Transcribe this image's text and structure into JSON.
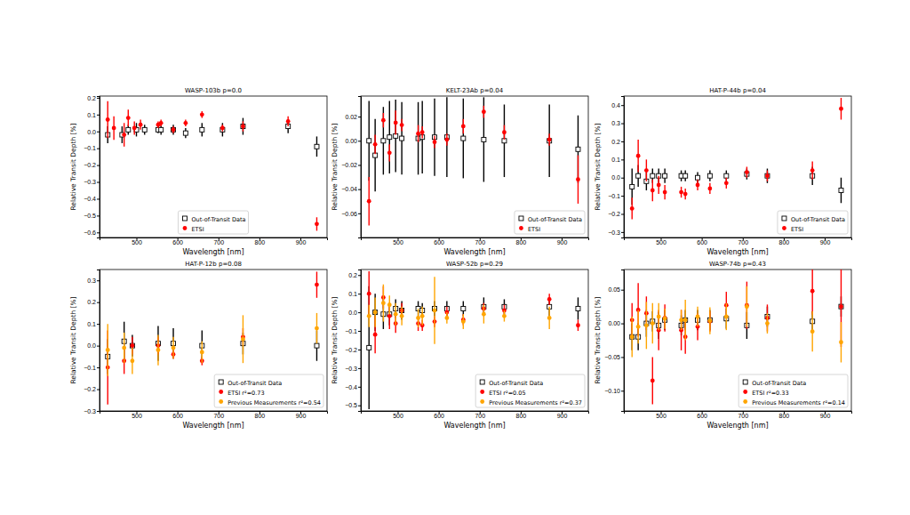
{
  "chart_data": [
    {
      "type": "scatter",
      "title": "WASP-103b p=0.0",
      "x_label": "Wavelength [nm]",
      "y_label": "Relative Transit Depth [%]",
      "xlim": [
        410,
        965
      ],
      "xticks": [
        500,
        600,
        700,
        800,
        900
      ],
      "ylim": [
        -0.63,
        0.21
      ],
      "yticks": [
        {
          "value": -0.6,
          "label": "−0.6"
        },
        {
          "value": -0.5,
          "label": "−0.5"
        },
        {
          "value": -0.4,
          "label": "−0.4"
        },
        {
          "value": -0.3,
          "label": "−0.3"
        },
        {
          "value": -0.2,
          "label": "−0.2"
        },
        {
          "value": -0.1,
          "label": "−0.1"
        },
        {
          "value": 0,
          "label": "0.0"
        },
        {
          "value": 0.1,
          "label": "0.1"
        },
        {
          "value": 0.2,
          "label": "0.2"
        }
      ],
      "legend": "lower center",
      "series": [
        {
          "name": "Out-of-Transit Data",
          "color": "#000000",
          "marker": "open-square",
          "x": [
            430,
            465,
            480,
            500,
            520,
            553,
            560,
            590,
            620,
            660,
            710,
            760,
            870,
            940
          ],
          "values": [
            -0.02,
            -0.02,
            0.01,
            0.01,
            0.01,
            0.01,
            0.01,
            0.01,
            -0.01,
            0.01,
            0.01,
            0.03,
            0.03,
            -0.09
          ],
          "errors": [
            0.05,
            0.05,
            0.03,
            0.04,
            0.03,
            0.02,
            0.03,
            0.03,
            0.03,
            0.04,
            0.04,
            0.05,
            0.04,
            0.06
          ]
        },
        {
          "name": "ETSI",
          "color": "#ff0000",
          "marker": "circle",
          "x": [
            430,
            445,
            470,
            480,
            495,
            510,
            553,
            560,
            590,
            620,
            660,
            710,
            760,
            870,
            940
          ],
          "values": [
            0.07,
            0.02,
            -0.02,
            0.08,
            0.02,
            0.04,
            0.04,
            0.05,
            0.01,
            0.05,
            0.1,
            0.02,
            0.03,
            0.06,
            -0.55
          ],
          "errors": [
            0.11,
            0.07,
            0.07,
            0.05,
            0.04,
            0.03,
            0.02,
            0.02,
            0.02,
            0.02,
            0.02,
            0.02,
            0.03,
            0.03,
            0.04
          ]
        }
      ]
    },
    {
      "type": "scatter",
      "title": "KELT-23Ab p=0.04",
      "x_label": "Wavelength [nm]",
      "y_label": "Relative Transit Depth [%]",
      "xlim": [
        410,
        965
      ],
      "xticks": [
        500,
        600,
        700,
        800,
        900
      ],
      "ylim": [
        -0.08,
        0.037
      ],
      "yticks": [
        {
          "value": -0.06,
          "label": "−0.06"
        },
        {
          "value": -0.04,
          "label": "−0.04"
        },
        {
          "value": -0.02,
          "label": "−0.02"
        },
        {
          "value": 0,
          "label": "0.00"
        },
        {
          "value": 0.02,
          "label": "0.02"
        }
      ],
      "legend": "lower right",
      "series": [
        {
          "name": "Out-of-Transit Data",
          "color": "#000000",
          "marker": "open-square",
          "x": [
            430,
            445,
            465,
            480,
            495,
            510,
            550,
            560,
            590,
            620,
            660,
            710,
            760,
            870,
            940
          ],
          "values": [
            0,
            -0.012,
            0,
            0.003,
            0.004,
            0.002,
            0.002,
            0.003,
            0.003,
            0.003,
            0.002,
            0.001,
            0,
            0,
            -0.007
          ],
          "errors": [
            0.033,
            0.03,
            0.028,
            0.03,
            0.03,
            0.03,
            0.03,
            0.03,
            0.032,
            0.033,
            0.033,
            0.035,
            0.03,
            0.03,
            0.028
          ]
        },
        {
          "name": "ETSI",
          "color": "#ff0000",
          "marker": "circle",
          "x": [
            430,
            445,
            465,
            480,
            495,
            510,
            550,
            560,
            590,
            620,
            660,
            710,
            760,
            870,
            940
          ],
          "values": [
            -0.05,
            -0.003,
            0.017,
            -0.01,
            0.015,
            0.013,
            0.006,
            0.007,
            -0.001,
            0.001,
            0.012,
            0.024,
            0.007,
            0.001,
            -0.032
          ],
          "errors": [
            0.02,
            0.008,
            0.006,
            0.007,
            0.01,
            0.005,
            0.007,
            0.005,
            0.005,
            0.005,
            0.006,
            0.005,
            0.006,
            0.005,
            0.02
          ]
        }
      ]
    },
    {
      "type": "scatter",
      "title": "HAT-P-44b p=0.04",
      "x_label": "Wavelength [nm]",
      "y_label": "Relative Transit Depth [%]",
      "xlim": [
        410,
        965
      ],
      "xticks": [
        500,
        600,
        700,
        800,
        900
      ],
      "ylim": [
        -0.33,
        0.45
      ],
      "yticks": [
        {
          "value": -0.3,
          "label": "−0.3"
        },
        {
          "value": -0.2,
          "label": "−0.2"
        },
        {
          "value": -0.1,
          "label": "−0.1"
        },
        {
          "value": 0,
          "label": "0.0"
        },
        {
          "value": 0.1,
          "label": "0.1"
        },
        {
          "value": 0.2,
          "label": "0.2"
        },
        {
          "value": 0.3,
          "label": "0.3"
        },
        {
          "value": 0.4,
          "label": "0.4"
        }
      ],
      "legend": "lower right",
      "series": [
        {
          "name": "Out-of-Transit Data",
          "color": "#000000",
          "marker": "open-square",
          "x": [
            430,
            445,
            465,
            480,
            495,
            510,
            550,
            560,
            590,
            620,
            660,
            710,
            760,
            870,
            940
          ],
          "values": [
            -0.05,
            0.01,
            -0.02,
            0.01,
            0.01,
            0.01,
            0.01,
            0.01,
            0,
            0.01,
            0.01,
            0.02,
            0.01,
            0.01,
            -0.07
          ],
          "errors": [
            0.1,
            0.06,
            0.05,
            0.04,
            0.04,
            0.04,
            0.03,
            0.03,
            0.03,
            0.03,
            0.03,
            0.03,
            0.04,
            0.05,
            0.07
          ]
        },
        {
          "name": "ETSI",
          "color": "#ff0000",
          "marker": "circle",
          "x": [
            430,
            445,
            465,
            480,
            495,
            510,
            550,
            560,
            590,
            620,
            660,
            710,
            760,
            870,
            940
          ],
          "values": [
            -0.17,
            0.12,
            0.04,
            -0.07,
            -0.04,
            -0.08,
            -0.08,
            -0.09,
            -0.04,
            -0.06,
            -0.03,
            0.03,
            0.01,
            0.04,
            0.38
          ],
          "errors": [
            0.06,
            0.09,
            0.06,
            0.06,
            0.05,
            0.04,
            0.03,
            0.03,
            0.03,
            0.03,
            0.03,
            0.03,
            0.03,
            0.05,
            0.06
          ]
        }
      ]
    },
    {
      "type": "scatter",
      "title": "HAT-P-12b p=0.08",
      "x_label": "Wavelength [nm]",
      "y_label": "Relative Transit Depth [%]",
      "xlim": [
        410,
        965
      ],
      "xticks": [
        500,
        600,
        700,
        800,
        900
      ],
      "ylim": [
        -0.3,
        0.35
      ],
      "yticks": [
        {
          "value": -0.3,
          "label": "−0.3"
        },
        {
          "value": -0.2,
          "label": "−0.2"
        },
        {
          "value": -0.1,
          "label": "−0.1"
        },
        {
          "value": 0,
          "label": "0.0"
        },
        {
          "value": 0.1,
          "label": "0.1"
        },
        {
          "value": 0.2,
          "label": "0.2"
        },
        {
          "value": 0.3,
          "label": "0.3"
        }
      ],
      "legend": "lower right",
      "series": [
        {
          "name": "Out-of-Transit Data",
          "color": "#000000",
          "marker": "open-square",
          "x": [
            430,
            470,
            490,
            553,
            590,
            660,
            760,
            940
          ],
          "values": [
            -0.05,
            0.02,
            0,
            0.01,
            0.01,
            0,
            0.01,
            0
          ],
          "errors": [
            0.08,
            0.09,
            0.05,
            0.08,
            0.07,
            0.07,
            0.05,
            0.07
          ]
        },
        {
          "name": "ETSI r²=0.73",
          "color": "#ff0000",
          "marker": "circle",
          "x": [
            430,
            470,
            490,
            553,
            590,
            660,
            760,
            940
          ],
          "values": [
            -0.1,
            -0.07,
            0,
            0,
            -0.04,
            -0.07,
            0.04,
            0.28
          ],
          "errors": [
            0.17,
            0.06,
            0.04,
            0.04,
            0.02,
            0.02,
            0.04,
            0.06
          ]
        },
        {
          "name": "Previous Measurements r²=0.54",
          "color": "#ffa500",
          "marker": "circle",
          "x": [
            430,
            470,
            490,
            553,
            590,
            660,
            760,
            940
          ],
          "values": [
            -0.02,
            -0.01,
            -0.07,
            -0.02,
            -0.01,
            -0.03,
            0.03,
            0.08
          ],
          "errors": [
            0.12,
            0.07,
            0.06,
            0.07,
            0.05,
            0.05,
            0.11,
            0.07
          ]
        }
      ]
    },
    {
      "type": "scatter",
      "title": "WASP-52b p=0.29",
      "x_label": "Wavelength [nm]",
      "y_label": "Relative Transit Depth [%]",
      "xlim": [
        410,
        965
      ],
      "xticks": [
        500,
        600,
        700,
        800,
        900
      ],
      "ylim": [
        -0.53,
        0.23
      ],
      "yticks": [
        {
          "value": -0.5,
          "label": "−0.5"
        },
        {
          "value": -0.4,
          "label": "−0.4"
        },
        {
          "value": -0.3,
          "label": "−0.3"
        },
        {
          "value": -0.2,
          "label": "−0.2"
        },
        {
          "value": -0.1,
          "label": "−0.1"
        },
        {
          "value": 0,
          "label": "0.0"
        },
        {
          "value": 0.1,
          "label": "0.1"
        },
        {
          "value": 0.2,
          "label": "0.2"
        }
      ],
      "legend": "lower right",
      "series": [
        {
          "name": "Out-of-Transit Data",
          "color": "#000000",
          "marker": "open-square",
          "x": [
            430,
            445,
            465,
            480,
            495,
            510,
            550,
            560,
            590,
            620,
            660,
            710,
            760,
            870,
            940
          ],
          "values": [
            -0.19,
            0,
            -0.01,
            -0.01,
            0.02,
            0.01,
            0.02,
            0.01,
            0.02,
            0.02,
            0.02,
            0.03,
            0.03,
            0.03,
            0.02
          ],
          "errors": [
            0.33,
            0.1,
            0.08,
            0.06,
            0.05,
            0.05,
            0.04,
            0.04,
            0.04,
            0.04,
            0.04,
            0.05,
            0.04,
            0.05,
            0.06
          ]
        },
        {
          "name": "ETSI r²=0.05",
          "color": "#ff0000",
          "marker": "circle",
          "x": [
            430,
            445,
            465,
            480,
            495,
            510,
            550,
            560,
            590,
            620,
            660,
            710,
            760,
            870,
            940
          ],
          "values": [
            0.1,
            -0.12,
            0.08,
            -0.02,
            -0.06,
            0.01,
            -0.06,
            -0.07,
            -0.05,
            0,
            -0.04,
            0.02,
            0.01,
            0.07,
            -0.07
          ],
          "errors": [
            0.12,
            0.1,
            0.06,
            0.07,
            0.05,
            0.04,
            0.04,
            0.03,
            0.03,
            0.03,
            0.03,
            0.03,
            0.03,
            0.03,
            0.03
          ]
        },
        {
          "name": "Previous Measurements r²=0.37",
          "color": "#ffa500",
          "marker": "circle",
          "x": [
            430,
            445,
            465,
            480,
            495,
            510,
            550,
            560,
            590,
            620,
            660,
            710,
            760,
            870
          ],
          "values": [
            -0.02,
            0,
            0.05,
            0.04,
            -0.01,
            -0.02,
            -0.03,
            -0.02,
            0.01,
            -0.03,
            -0.05,
            -0.01,
            -0.02,
            -0.03
          ],
          "errors": [
            0.06,
            0.08,
            0.1,
            0.05,
            0.06,
            0.05,
            0.05,
            0.05,
            0.18,
            0.03,
            0.04,
            0.05,
            0.03,
            0.06
          ]
        }
      ]
    },
    {
      "type": "scatter",
      "title": "WASP-74b p=0.43",
      "x_label": "Wavelength [nm]",
      "y_label": "Relative Transit Depth [%]",
      "xlim": [
        410,
        965
      ],
      "xticks": [
        500,
        600,
        700,
        800,
        900
      ],
      "ylim": [
        -0.13,
        0.08
      ],
      "yticks": [
        {
          "value": -0.1,
          "label": "−0.10"
        },
        {
          "value": -0.05,
          "label": "−0.05"
        },
        {
          "value": 0,
          "label": "0.00"
        },
        {
          "value": 0.05,
          "label": "0.05"
        }
      ],
      "legend": "lower right",
      "series": [
        {
          "name": "Out-of-Transit Data",
          "color": "#000000",
          "marker": "open-square",
          "x": [
            430,
            445,
            465,
            480,
            495,
            510,
            550,
            560,
            590,
            620,
            660,
            710,
            760,
            870,
            940
          ],
          "values": [
            -0.02,
            -0.02,
            0,
            0.003,
            -0.003,
            0.005,
            -0.003,
            0.005,
            0.005,
            0.005,
            0.007,
            -0.003,
            0.01,
            0.003,
            0.025
          ],
          "errors": [
            0.02,
            0.02,
            0.02,
            0.015,
            0.02,
            0.015,
            0.015,
            0.015,
            0.015,
            0.015,
            0.015,
            0.02,
            0.015,
            0.015,
            0.015
          ]
        },
        {
          "name": "ETSI r²=0.33",
          "color": "#ff0000",
          "marker": "circle",
          "x": [
            430,
            445,
            465,
            480,
            495,
            510,
            550,
            560,
            590,
            620,
            660,
            710,
            760,
            870,
            940
          ],
          "values": [
            0.005,
            0.02,
            0.015,
            -0.085,
            -0.01,
            0.008,
            -0.01,
            -0.02,
            -0.005,
            0.003,
            0.027,
            0.027,
            0.008,
            0.048,
            0.025
          ],
          "errors": [
            0.025,
            0.04,
            0.025,
            0.035,
            0.03,
            0.02,
            0.03,
            0.025,
            0.02,
            0.015,
            0.02,
            0.035,
            0.02,
            0.035,
            0.06
          ]
        },
        {
          "name": "Previous Measurements r²=0.14",
          "color": "#ffa500",
          "marker": "circle",
          "x": [
            430,
            445,
            465,
            480,
            495,
            510,
            550,
            560,
            590,
            620,
            660,
            710,
            760,
            870,
            940
          ],
          "values": [
            -0.02,
            -0.005,
            -0.003,
            0,
            0.01,
            0.007,
            0.005,
            0.005,
            0.01,
            0.004,
            0.01,
            0.025,
            0,
            -0.012,
            -0.028
          ],
          "errors": [
            0.03,
            0.025,
            0.035,
            0.03,
            0.02,
            0.015,
            0.015,
            0.03,
            0.015,
            0.02,
            0.02,
            0.03,
            0.015,
            0.03,
            0.03
          ]
        }
      ]
    }
  ]
}
